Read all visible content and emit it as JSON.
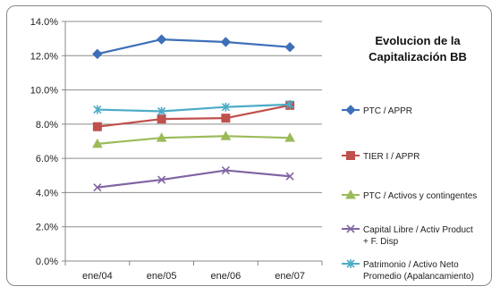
{
  "chart_data": {
    "type": "line",
    "title_lines": [
      "Evolucion de la",
      "Capitalización BB"
    ],
    "categories": [
      "ene/04",
      "ene/05",
      "ene/06",
      "ene/07"
    ],
    "ylim": [
      0,
      14
    ],
    "ytick_values": [
      0,
      2,
      4,
      6,
      8,
      10,
      12,
      14
    ],
    "ytick_labels": [
      "0.0%",
      "2.0%",
      "4.0%",
      "6.0%",
      "8.0%",
      "10.0%",
      "12.0%",
      "14.0%"
    ],
    "grid": true,
    "legend_position": "right",
    "series": [
      {
        "name": "PTC / APPR",
        "name_lines": [
          "PTC / APPR"
        ],
        "values": [
          12.1,
          12.95,
          12.8,
          12.5
        ],
        "color": "#3e6fb9",
        "marker": "diamond"
      },
      {
        "name": "TIER I / APPR",
        "name_lines": [
          "TIER I / APPR"
        ],
        "values": [
          7.85,
          8.3,
          8.35,
          9.1
        ],
        "color": "#c0504d",
        "marker": "square"
      },
      {
        "name": "PTC / Activos y contingentes",
        "name_lines": [
          "PTC / Activos y contingentes"
        ],
        "values": [
          6.85,
          7.2,
          7.3,
          7.2
        ],
        "color": "#9bbb59",
        "marker": "triangle"
      },
      {
        "name": "Capital Libre / Activ Product + F. Disp",
        "name_lines": [
          "Capital Libre / Activ Product",
          "+ F. Disp"
        ],
        "values": [
          4.3,
          4.75,
          5.3,
          4.95
        ],
        "color": "#8064a2",
        "marker": "x"
      },
      {
        "name": "Patrimonio / Activo Neto Promedio (Apalancamiento)",
        "name_lines": [
          "Patrimonio / Activo Neto",
          "Promedio (Apalancamiento)"
        ],
        "values": [
          8.85,
          8.75,
          9.0,
          9.15
        ],
        "color": "#4bacc6",
        "marker": "star"
      }
    ]
  }
}
